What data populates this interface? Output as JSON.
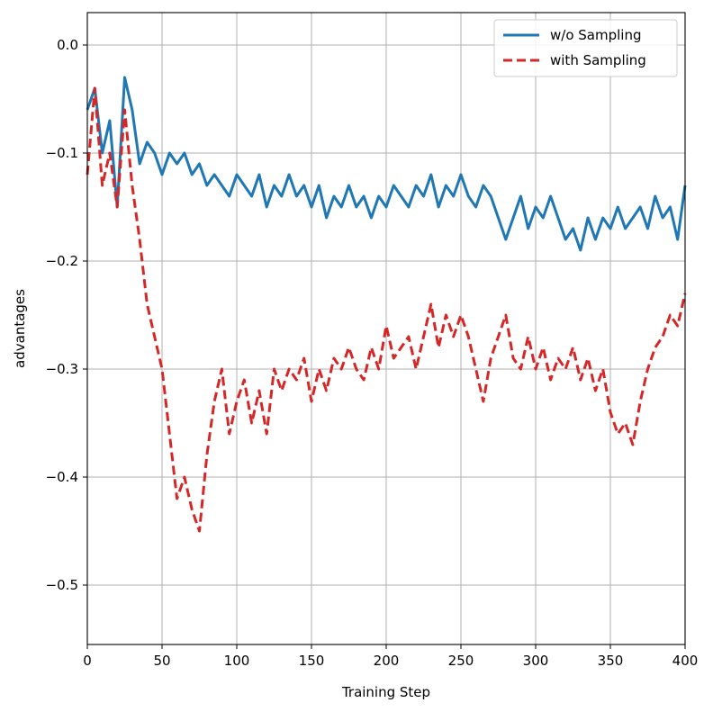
{
  "chart_data": {
    "type": "line",
    "xlabel": "Training Step",
    "ylabel": "advantages",
    "xlim": [
      0,
      400
    ],
    "ylim": [
      -0.555,
      0.03
    ],
    "xticks": [
      0,
      50,
      100,
      150,
      200,
      250,
      300,
      350,
      400
    ],
    "xtick_labels": [
      "0",
      "50",
      "100",
      "150",
      "200",
      "250",
      "300",
      "350",
      "400"
    ],
    "yticks": [
      0.0,
      -0.1,
      -0.2,
      -0.3,
      -0.4,
      -0.5
    ],
    "ytick_labels": [
      "0.0",
      "−0.1",
      "−0.2",
      "−0.3",
      "−0.4",
      "−0.5"
    ],
    "grid": true,
    "legend_position": "top-right",
    "series": [
      {
        "name": "w/o Sampling",
        "color": "#1f77b4",
        "style": "solid",
        "x": [
          0,
          5,
          10,
          15,
          20,
          25,
          30,
          35,
          40,
          45,
          50,
          55,
          60,
          65,
          70,
          75,
          80,
          85,
          90,
          95,
          100,
          105,
          110,
          115,
          120,
          125,
          130,
          135,
          140,
          145,
          150,
          155,
          160,
          165,
          170,
          175,
          180,
          185,
          190,
          195,
          200,
          205,
          210,
          215,
          220,
          225,
          230,
          235,
          240,
          245,
          250,
          255,
          260,
          265,
          270,
          275,
          280,
          285,
          290,
          295,
          300,
          305,
          310,
          315,
          320,
          325,
          330,
          335,
          340,
          345,
          350,
          355,
          360,
          365,
          370,
          375,
          380,
          385,
          390,
          395,
          400
        ],
        "y": [
          -0.06,
          -0.04,
          -0.1,
          -0.07,
          -0.15,
          -0.03,
          -0.06,
          -0.11,
          -0.09,
          -0.1,
          -0.12,
          -0.1,
          -0.11,
          -0.1,
          -0.12,
          -0.11,
          -0.13,
          -0.12,
          -0.13,
          -0.14,
          -0.12,
          -0.13,
          -0.14,
          -0.12,
          -0.15,
          -0.13,
          -0.14,
          -0.12,
          -0.14,
          -0.13,
          -0.15,
          -0.13,
          -0.16,
          -0.14,
          -0.15,
          -0.13,
          -0.15,
          -0.14,
          -0.16,
          -0.14,
          -0.15,
          -0.13,
          -0.14,
          -0.15,
          -0.13,
          -0.14,
          -0.12,
          -0.15,
          -0.13,
          -0.14,
          -0.12,
          -0.14,
          -0.15,
          -0.13,
          -0.14,
          -0.16,
          -0.18,
          -0.16,
          -0.14,
          -0.17,
          -0.15,
          -0.16,
          -0.14,
          -0.16,
          -0.18,
          -0.17,
          -0.19,
          -0.16,
          -0.18,
          -0.16,
          -0.17,
          -0.15,
          -0.17,
          -0.16,
          -0.15,
          -0.17,
          -0.14,
          -0.16,
          -0.15,
          -0.18,
          -0.13
        ]
      },
      {
        "name": "with Sampling",
        "color": "#d62728",
        "style": "dashed",
        "x": [
          0,
          5,
          10,
          15,
          20,
          25,
          30,
          35,
          40,
          45,
          50,
          55,
          60,
          65,
          70,
          75,
          80,
          85,
          90,
          95,
          100,
          105,
          110,
          115,
          120,
          125,
          130,
          135,
          140,
          145,
          150,
          155,
          160,
          165,
          170,
          175,
          180,
          185,
          190,
          195,
          200,
          205,
          210,
          215,
          220,
          225,
          230,
          235,
          240,
          245,
          250,
          255,
          260,
          265,
          270,
          275,
          280,
          285,
          290,
          295,
          300,
          305,
          310,
          315,
          320,
          325,
          330,
          335,
          340,
          345,
          350,
          355,
          360,
          365,
          370,
          375,
          380,
          385,
          390,
          395,
          400
        ],
        "y": [
          -0.12,
          -0.04,
          -0.13,
          -0.1,
          -0.15,
          -0.06,
          -0.13,
          -0.18,
          -0.24,
          -0.27,
          -0.3,
          -0.36,
          -0.42,
          -0.4,
          -0.43,
          -0.45,
          -0.38,
          -0.33,
          -0.3,
          -0.36,
          -0.33,
          -0.31,
          -0.35,
          -0.32,
          -0.36,
          -0.3,
          -0.32,
          -0.3,
          -0.31,
          -0.29,
          -0.33,
          -0.3,
          -0.32,
          -0.29,
          -0.3,
          -0.28,
          -0.3,
          -0.31,
          -0.28,
          -0.3,
          -0.26,
          -0.29,
          -0.28,
          -0.27,
          -0.3,
          -0.27,
          -0.24,
          -0.28,
          -0.25,
          -0.27,
          -0.25,
          -0.27,
          -0.3,
          -0.33,
          -0.29,
          -0.27,
          -0.25,
          -0.29,
          -0.3,
          -0.27,
          -0.3,
          -0.28,
          -0.31,
          -0.29,
          -0.3,
          -0.28,
          -0.31,
          -0.29,
          -0.32,
          -0.3,
          -0.34,
          -0.36,
          -0.35,
          -0.37,
          -0.33,
          -0.3,
          -0.28,
          -0.27,
          -0.25,
          -0.26,
          -0.23
        ]
      }
    ]
  }
}
